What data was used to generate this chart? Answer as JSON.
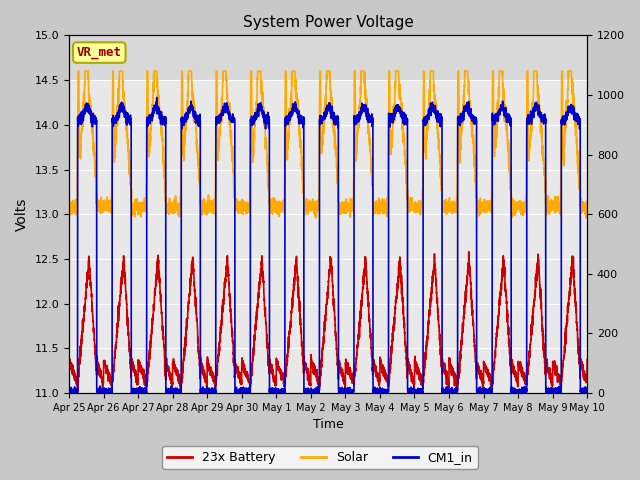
{
  "title": "System Power Voltage",
  "xlabel": "Time",
  "ylabel": "Volts",
  "ylim_left": [
    11.0,
    15.0
  ],
  "ylim_right": [
    0,
    1200
  ],
  "fig_bg_color": "#c8c8c8",
  "plot_bg_color": "#e8e8e8",
  "plot_bg_top_color": "#d0d0d0",
  "grid_color": "white",
  "vr_met_label": "VR_met",
  "vr_met_color": "#990000",
  "vr_met_bg": "#ffff99",
  "vr_met_border": "#aaaa00",
  "series": {
    "battery": {
      "label": "23x Battery",
      "color": "#cc0000",
      "lw": 1.2
    },
    "solar": {
      "label": "Solar",
      "color": "#ffaa00",
      "lw": 1.2
    },
    "cm1": {
      "label": "CM1_in",
      "color": "#0000cc",
      "lw": 1.2
    }
  },
  "x_tick_labels": [
    "Apr 25",
    "Apr 26",
    "Apr 27",
    "Apr 28",
    "Apr 29",
    "Apr 30",
    "May 1",
    "May 2",
    "May 3",
    "May 4",
    "May 5",
    "May 6",
    "May 7",
    "May 8",
    "May 9",
    "May 10"
  ],
  "yticks_left": [
    11.0,
    11.5,
    12.0,
    12.5,
    13.0,
    13.5,
    14.0,
    14.5,
    15.0
  ],
  "yticks_right": [
    0,
    200,
    400,
    600,
    800,
    1000,
    1200
  ],
  "n_days": 15,
  "pts_per_day": 288
}
